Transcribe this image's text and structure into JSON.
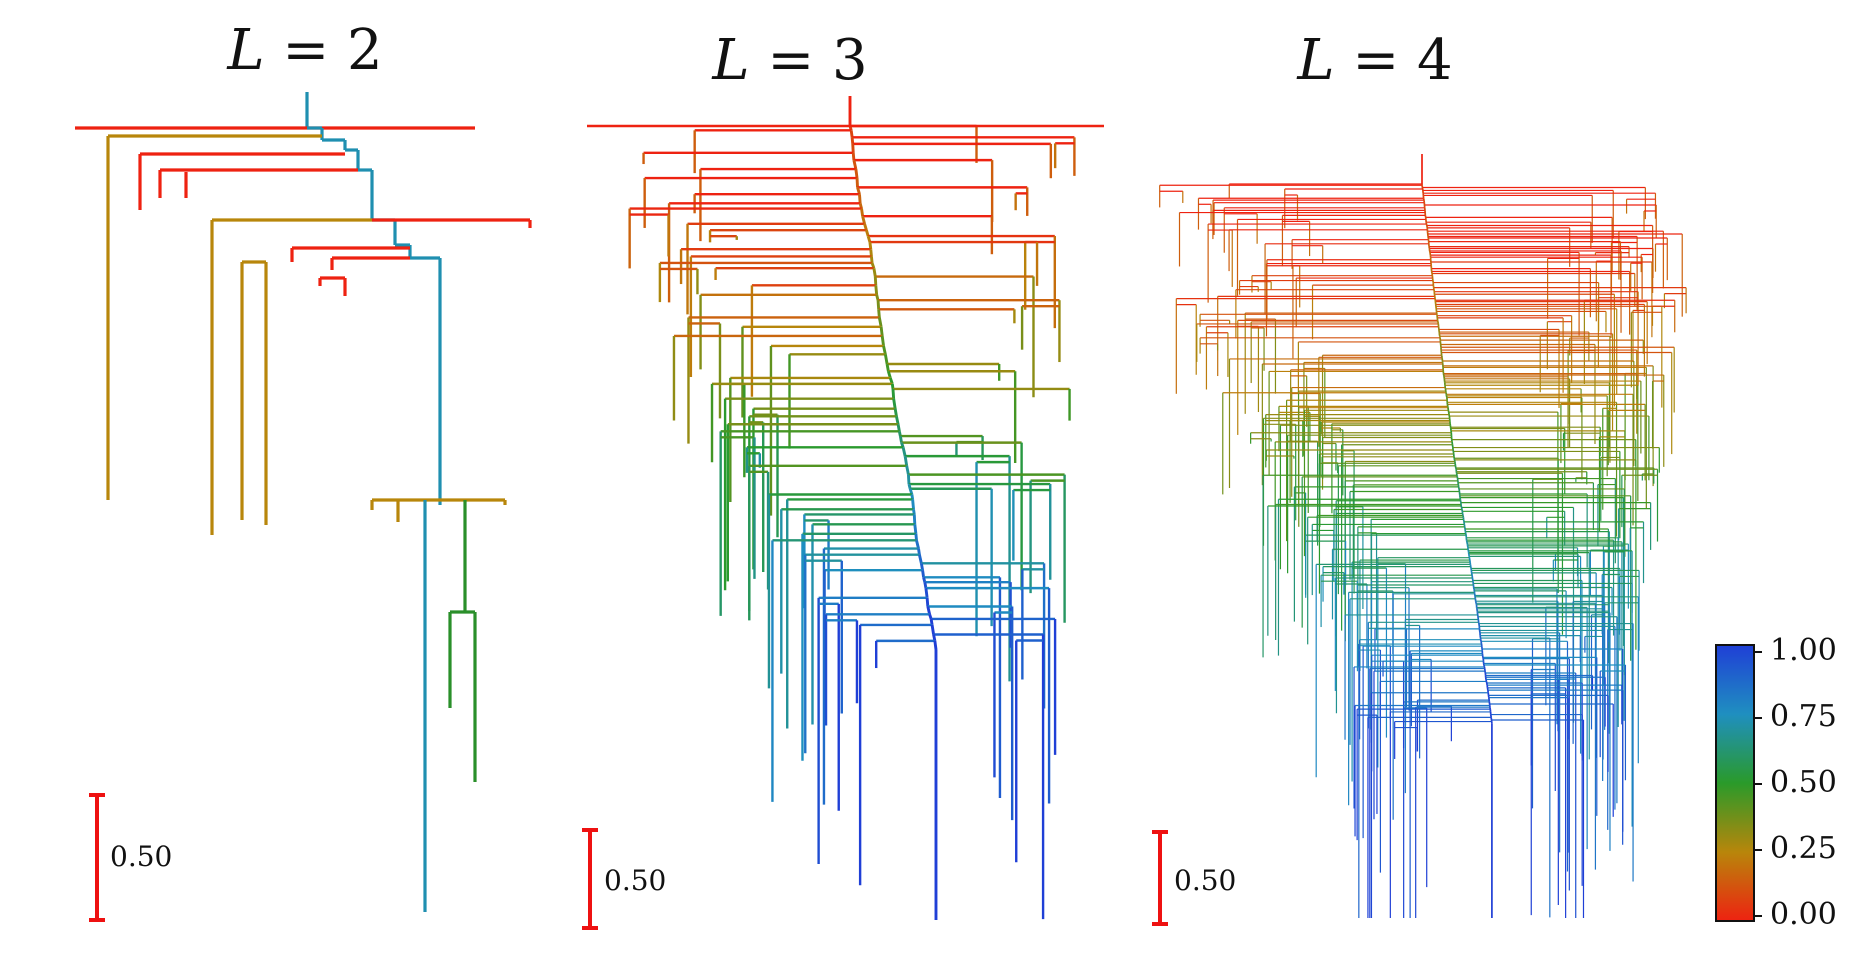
{
  "chart_data": [
    {
      "type": "dendrogram",
      "title_var": "L",
      "title_eq": "=",
      "title_val": "2",
      "scale_bar": {
        "label": "0.50",
        "value": 0.5
      },
      "branch_color_range": [
        0.0,
        1.0
      ]
    },
    {
      "type": "dendrogram",
      "title_var": "L",
      "title_eq": "=",
      "title_val": "3",
      "scale_bar": {
        "label": "0.50",
        "value": 0.5
      },
      "branch_color_range": [
        0.0,
        1.0
      ]
    },
    {
      "type": "dendrogram",
      "title_var": "L",
      "title_eq": "=",
      "title_val": "4",
      "scale_bar": {
        "label": "0.50",
        "value": 0.5
      },
      "branch_color_range": [
        0.0,
        1.0
      ]
    }
  ],
  "colorbar": {
    "ticks": [
      "1.00",
      "0.75",
      "0.50",
      "0.25",
      "0.00"
    ],
    "tick_values": [
      1.0,
      0.75,
      0.5,
      0.25,
      0.0
    ],
    "colors": [
      "#1f3fd6",
      "#1f8fc0",
      "#2a9a2a",
      "#b8860b",
      "#ee2211"
    ]
  }
}
